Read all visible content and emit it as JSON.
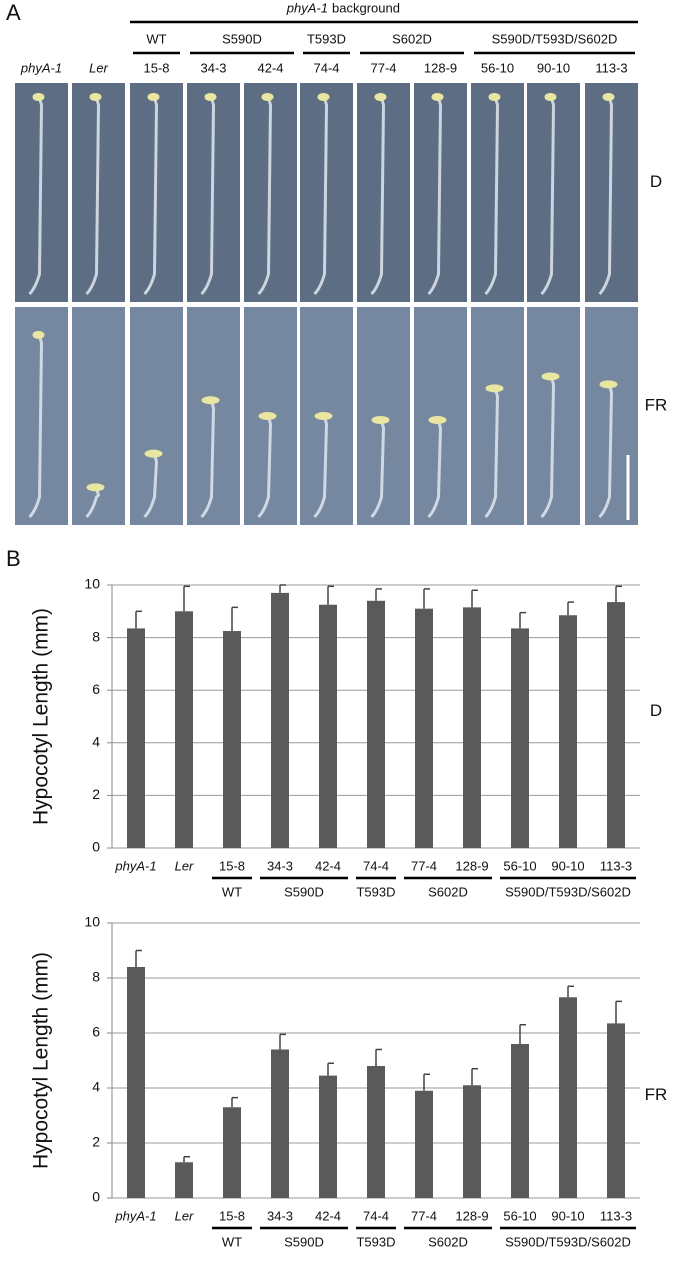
{
  "panel_a": {
    "label": "A",
    "header_italic": "phyA-1",
    "header_rest": "background",
    "groups": [
      "WT",
      "S590D",
      "T593D",
      "S602D",
      "S590D/T593D/S602D"
    ],
    "lines": [
      "phyA-1",
      "Ler",
      "15-8",
      "34-3",
      "42-4",
      "74-4",
      "77-4",
      "128-9",
      "56-10",
      "90-10",
      "113-3"
    ],
    "conditions": [
      "D",
      "FR"
    ]
  },
  "panel_b": {
    "label": "B"
  },
  "chart_data": [
    {
      "type": "bar",
      "condition": "D",
      "ylabel": "Hypocotyl Length (mm)",
      "categories": [
        "phyA-1",
        "Ler",
        "15-8",
        "34-3",
        "42-4",
        "74-4",
        "77-4",
        "128-9",
        "56-10",
        "90-10",
        "113-3"
      ],
      "values": [
        8.35,
        9.0,
        8.25,
        9.7,
        9.25,
        9.4,
        9.1,
        9.15,
        8.35,
        8.85,
        9.35
      ],
      "errors": [
        0.65,
        0.95,
        0.9,
        0.3,
        0.7,
        0.45,
        0.75,
        0.65,
        0.6,
        0.5,
        0.6
      ],
      "groups": [
        "WT",
        "S590D",
        "T593D",
        "S602D",
        "S590D/T593D/S602D"
      ],
      "color": "#5a5a5a",
      "ylim": [
        0,
        10
      ],
      "yticks": [
        0,
        2,
        4,
        6,
        8,
        10
      ],
      "grid": true
    },
    {
      "type": "bar",
      "condition": "FR",
      "ylabel": "Hypocotyl Length (mm)",
      "categories": [
        "phyA-1",
        "Ler",
        "15-8",
        "34-3",
        "42-4",
        "74-4",
        "77-4",
        "128-9",
        "56-10",
        "90-10",
        "113-3"
      ],
      "values": [
        8.4,
        1.3,
        3.3,
        5.4,
        4.45,
        4.8,
        3.9,
        4.1,
        5.6,
        7.3,
        6.35
      ],
      "errors": [
        0.6,
        0.2,
        0.35,
        0.55,
        0.45,
        0.6,
        0.6,
        0.6,
        0.7,
        0.4,
        0.8
      ],
      "groups": [
        "WT",
        "S590D",
        "T593D",
        "S602D",
        "S590D/T593D/S602D"
      ],
      "color": "#5a5a5a",
      "ylim": [
        0,
        10
      ],
      "yticks": [
        0,
        2,
        4,
        6,
        8,
        10
      ],
      "grid": true
    }
  ]
}
